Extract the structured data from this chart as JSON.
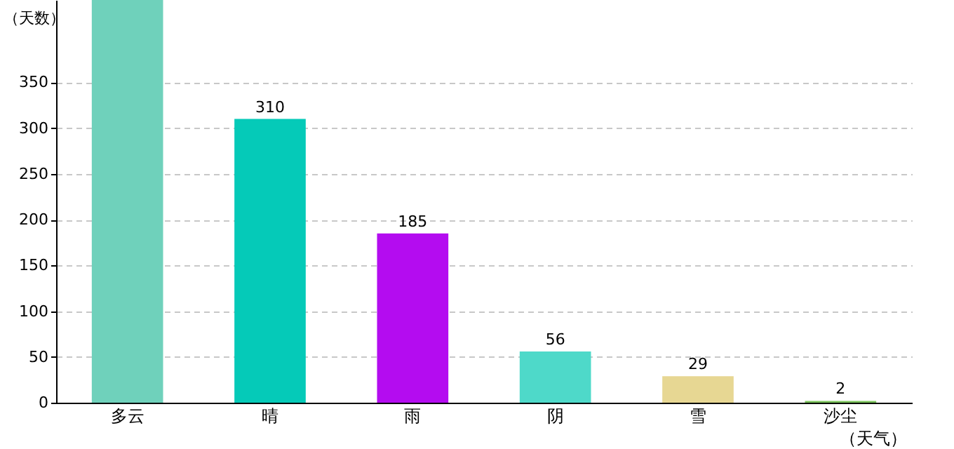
{
  "chart_data": {
    "type": "bar",
    "xlabel": "（天气）",
    "ylabel": "（天数）",
    "categories": [
      "多云",
      "晴",
      "雨",
      "阴",
      "雪",
      "沙尘"
    ],
    "values": [
      440,
      310,
      185,
      56,
      29,
      2
    ],
    "colors": [
      "#6fd1bb",
      "#05cab8",
      "#b40cf0",
      "#4ed9c9",
      "#e7d793",
      "#7cc45c"
    ],
    "value_labels": [
      null,
      "310",
      "185",
      "56",
      "29",
      "2"
    ],
    "ylim": [
      0,
      440
    ],
    "yticks": [
      0,
      50,
      100,
      150,
      200,
      250,
      300,
      350
    ],
    "grid": "y"
  }
}
